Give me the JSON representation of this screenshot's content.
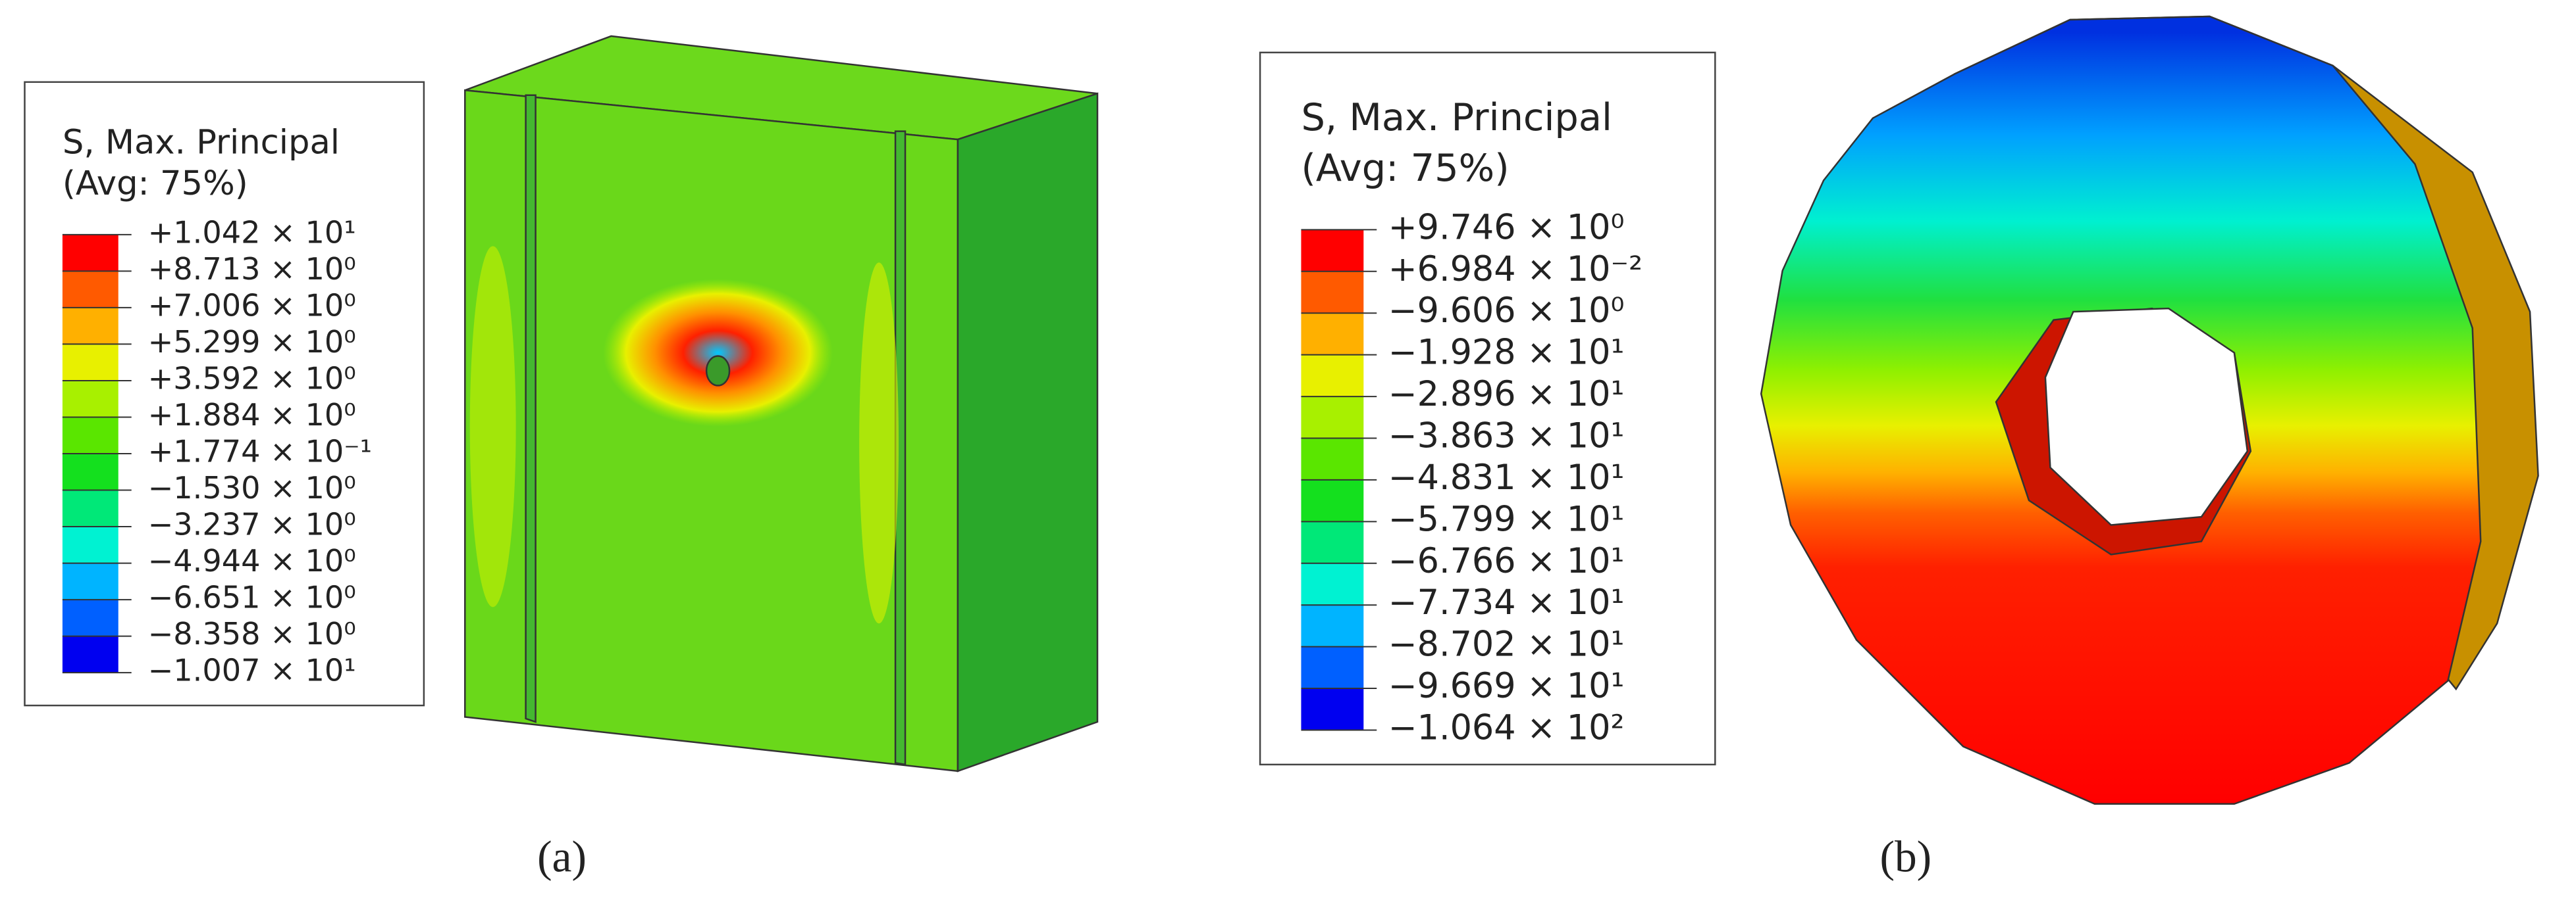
{
  "panels": [
    {
      "legend": {
        "title": [
          "S, Max. Principal",
          "(Avg: 75%)"
        ],
        "labels": [
          "+1.042 × 10¹",
          "+8.713 × 10⁰",
          "+7.006 × 10⁰",
          "+5.299 × 10⁰",
          "+3.592 × 10⁰",
          "+1.884 × 10⁰",
          "+1.774 × 10⁻¹",
          "−1.530 × 10⁰",
          "−3.237 × 10⁰",
          "−4.944 × 10⁰",
          "−6.651 × 10⁰",
          "−8.358 × 10⁰",
          "−1.007 × 10¹"
        ]
      },
      "caption": "(a)"
    },
    {
      "legend": {
        "title": [
          "S, Max. Principal",
          "(Avg: 75%)"
        ],
        "labels": [
          "+9.746 × 10⁰",
          "+6.984 × 10⁻²",
          "−9.606 × 10⁰",
          "−1.928 × 10¹",
          "−2.896 × 10¹",
          "−3.863 × 10¹",
          "−4.831 × 10¹",
          "−5.799 × 10¹",
          "−6.766 × 10¹",
          "−7.734 × 10¹",
          "−8.702 × 10¹",
          "−9.669 × 10¹",
          "−1.064 × 10²"
        ]
      },
      "caption": "(b)"
    }
  ],
  "contour_colors": [
    "#ff0000",
    "#ff5a00",
    "#ffb000",
    "#e8f000",
    "#a8f000",
    "#5ae600",
    "#14e01e",
    "#00e878",
    "#00f2d2",
    "#00b4ff",
    "#0060ff",
    "#0000f0"
  ]
}
